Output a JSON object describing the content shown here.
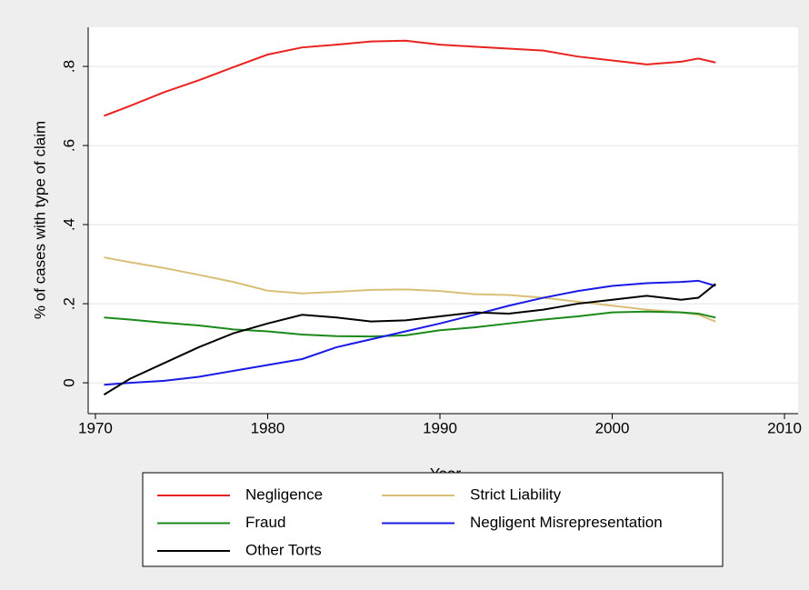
{
  "chart_data": {
    "type": "line",
    "xlabel": "Year",
    "ylabel": "% of cases with type of claim",
    "x": [
      1970.5,
      1972,
      1974,
      1976,
      1978,
      1980,
      1982,
      1984,
      1986,
      1988,
      1990,
      1992,
      1994,
      1996,
      1998,
      2000,
      2002,
      2004,
      2005,
      2006
    ],
    "series": [
      {
        "name": "Negligence",
        "color": "#e8221f",
        "values": [
          0.675,
          0.7,
          0.735,
          0.765,
          0.798,
          0.83,
          0.848,
          0.855,
          0.863,
          0.865,
          0.855,
          0.85,
          0.845,
          0.84,
          0.825,
          0.815,
          0.805,
          0.812,
          0.82,
          0.81
        ]
      },
      {
        "name": "Strict Liability",
        "color": "#d9bf77",
        "values": [
          0.317,
          0.305,
          0.29,
          0.273,
          0.255,
          0.233,
          0.226,
          0.23,
          0.235,
          0.236,
          0.232,
          0.224,
          0.222,
          0.215,
          0.205,
          0.195,
          0.185,
          0.178,
          0.172,
          0.155
        ]
      },
      {
        "name": "Fraud",
        "color": "#1a8a1a",
        "values": [
          0.165,
          0.16,
          0.152,
          0.145,
          0.135,
          0.13,
          0.122,
          0.118,
          0.117,
          0.12,
          0.133,
          0.14,
          0.15,
          0.16,
          0.168,
          0.178,
          0.18,
          0.178,
          0.175,
          0.165
        ]
      },
      {
        "name": "Negligent Misrepresentation",
        "color": "#1a1ae6",
        "values": [
          -0.005,
          0,
          0.005,
          0.015,
          0.03,
          0.045,
          0.06,
          0.09,
          0.11,
          0.13,
          0.15,
          0.172,
          0.195,
          0.215,
          0.232,
          0.245,
          0.252,
          0.255,
          0.258,
          0.245
        ]
      },
      {
        "name": "Other Torts",
        "color": "#000000",
        "values": [
          -0.03,
          0.01,
          0.05,
          0.09,
          0.125,
          0.15,
          0.172,
          0.165,
          0.155,
          0.158,
          0.168,
          0.178,
          0.175,
          0.185,
          0.2,
          0.21,
          0.22,
          0.21,
          0.215,
          0.25
        ]
      }
    ],
    "xlim": [
      1969.58,
      2010.79
    ],
    "xticks": [
      1970,
      1980,
      1990,
      2000,
      2010
    ],
    "ylim": [
      -0.078,
      0.899
    ],
    "yticks": [
      {
        "value": 0,
        "label": "0"
      },
      {
        "value": 0.2,
        "label": ".2"
      },
      {
        "value": 0.4,
        "label": ".4"
      },
      {
        "value": 0.6,
        "label": ".6"
      },
      {
        "value": 0.8,
        "label": ".8"
      }
    ],
    "grid": true
  }
}
